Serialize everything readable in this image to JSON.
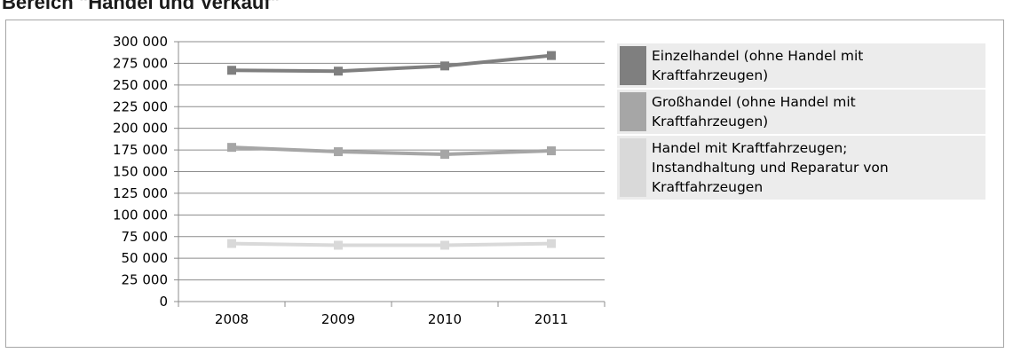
{
  "page": {
    "heading": "Bereich \"Handel und Verkauf\""
  },
  "chart_data": {
    "type": "line",
    "title": "",
    "xlabel": "",
    "ylabel": "",
    "categories": [
      "2008",
      "2009",
      "2010",
      "2011"
    ],
    "ylim": [
      0,
      300000
    ],
    "ytick_step": 25000,
    "ytick_labels": [
      "0",
      "25 000",
      "50 000",
      "75 000",
      "100 000",
      "125 000",
      "150 000",
      "175 000",
      "200 000",
      "225 000",
      "250 000",
      "275 000",
      "300 000"
    ],
    "grid": true,
    "legend_position": "right",
    "series": [
      {
        "name": "Einzelhandel (ohne Handel mit Kraftfahrzeugen)",
        "legend_lines": [
          "Einzelhandel (ohne Handel mit",
          "Kraftfahrzeugen)"
        ],
        "color": "#7f7f7f",
        "values": [
          267000,
          266000,
          272000,
          284000
        ]
      },
      {
        "name": "Großhandel (ohne Handel mit Kraftfahrzeugen)",
        "legend_lines": [
          "Großhandel (ohne Handel mit",
          "Kraftfahrzeugen)"
        ],
        "color": "#a6a6a6",
        "values": [
          178000,
          173000,
          170000,
          174000
        ]
      },
      {
        "name": "Handel mit Kraftfahrzeugen; Instandhaltung und Reparatur von Kraftfahrzeugen",
        "legend_lines": [
          "Handel mit Kraftfahrzeugen;",
          "Instandhaltung und Reparatur von",
          "Kraftfahrzeugen"
        ],
        "color": "#d9d9d9",
        "values": [
          67000,
          65000,
          65000,
          67000
        ]
      }
    ]
  }
}
